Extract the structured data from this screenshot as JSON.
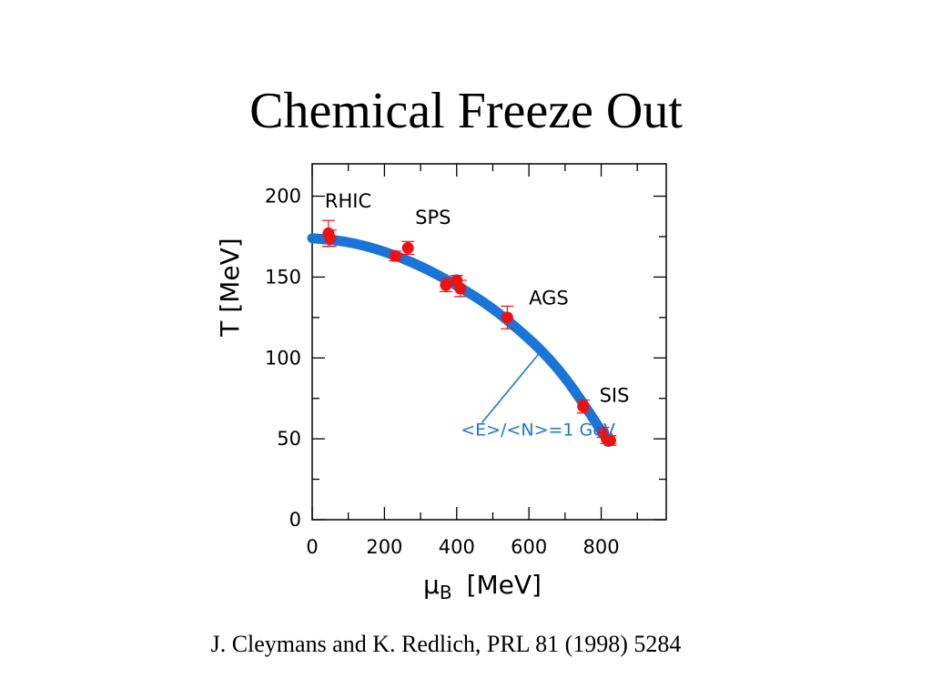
{
  "title": "Chemical Freeze Out",
  "citation": "J. Cleymans and K. Redlich, PRL 81 (1998) 5284",
  "chart_data": {
    "type": "scatter",
    "xlabel": "[MeV]",
    "xlabel_symbol": "μ",
    "xlabel_sub": "B",
    "ylabel": "T  [MeV]",
    "xlim": [
      0,
      980
    ],
    "ylim": [
      0,
      220
    ],
    "x_ticks": [
      "0",
      "200",
      "400",
      "600",
      "800"
    ],
    "y_ticks": [
      "0",
      "50",
      "100",
      "150",
      "200"
    ],
    "grid": false,
    "point_color": "#ee1111",
    "curve_color": "#1a75d8",
    "series": [
      {
        "type": "scatter",
        "points": [
          {
            "x": 45,
            "y": 177,
            "err": 8
          },
          {
            "x": 50,
            "y": 174,
            "err": 5
          },
          {
            "x": 230,
            "y": 163,
            "err": 3
          },
          {
            "x": 265,
            "y": 168,
            "err": 4
          },
          {
            "x": 370,
            "y": 145,
            "err": 4
          },
          {
            "x": 400,
            "y": 148,
            "err": 3
          },
          {
            "x": 410,
            "y": 143,
            "err": 5
          },
          {
            "x": 540,
            "y": 125,
            "err": 7
          },
          {
            "x": 750,
            "y": 70,
            "err": 4
          },
          {
            "x": 805,
            "y": 54,
            "err": 3
          },
          {
            "x": 815,
            "y": 50,
            "err": 3
          },
          {
            "x": 825,
            "y": 49,
            "err": 3
          }
        ]
      },
      {
        "type": "line",
        "label": "<E>/<N>=1 GeV",
        "x": [
          0,
          100,
          200,
          300,
          400,
          500,
          600,
          650,
          700,
          750,
          800,
          820
        ],
        "y": [
          174,
          172,
          166,
          157,
          145,
          131,
          112,
          101,
          88,
          72,
          55,
          48
        ]
      }
    ],
    "annotations": [
      {
        "text": "RHIC",
        "x": 35,
        "y": 193
      },
      {
        "text": "SPS",
        "x": 285,
        "y": 183
      },
      {
        "text": "AGS",
        "x": 600,
        "y": 133
      },
      {
        "text": "SIS",
        "x": 795,
        "y": 73
      }
    ],
    "curve_label": {
      "text": "<E>/<N>=1 GeV",
      "x": 625,
      "y": 52,
      "arrow_from": [
        470,
        60
      ],
      "arrow_to": [
        640,
        106
      ]
    }
  }
}
